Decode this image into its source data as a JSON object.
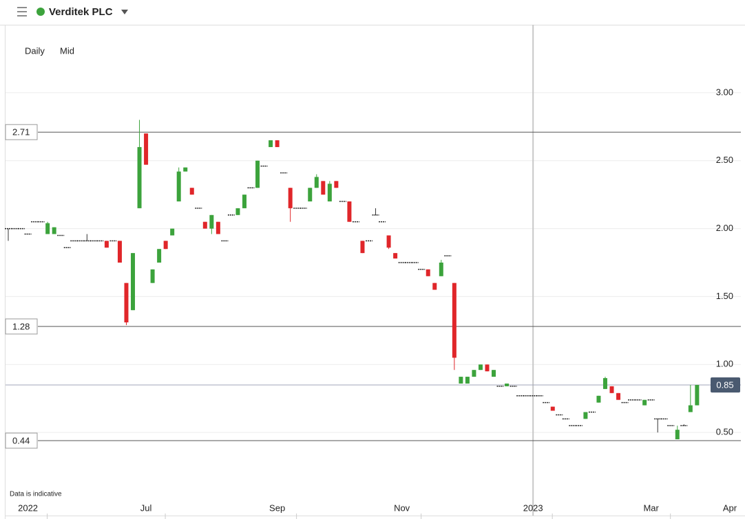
{
  "header": {
    "title": "Verditek PLC"
  },
  "controls": [
    "Daily",
    "Mid"
  ],
  "chart_data": {
    "type": "candlestick",
    "note": "Data is indicative",
    "categories": [
      null,
      null,
      null,
      "2022",
      null,
      null,
      null,
      null,
      null,
      null,
      null,
      null,
      null,
      null,
      null,
      null,
      null,
      null,
      null,
      null,
      null,
      "Jul",
      null,
      null,
      null,
      null,
      null,
      null,
      null,
      null,
      null,
      null,
      null,
      null,
      null,
      null,
      null,
      null,
      null,
      null,
      null,
      "Sep",
      null,
      null,
      null,
      null,
      null,
      null,
      null,
      null,
      null,
      null,
      null,
      null,
      null,
      null,
      null,
      null,
      null,
      null,
      "Nov",
      null,
      null,
      null,
      null,
      null,
      null,
      null,
      null,
      null,
      null,
      null,
      null,
      null,
      null,
      null,
      null,
      null,
      null,
      null,
      "2023",
      null,
      null,
      null,
      null,
      null,
      null,
      null,
      null,
      null,
      null,
      null,
      null,
      null,
      null,
      null,
      null,
      null,
      "Mar",
      null,
      null,
      null,
      null,
      null,
      null,
      null,
      null,
      null,
      null,
      null,
      "Apr"
    ],
    "open": [
      2.0,
      2.0,
      2.0,
      1.96,
      2.05,
      2.05,
      1.96,
      1.96,
      1.95,
      1.86,
      1.91,
      1.91,
      1.91,
      1.91,
      1.91,
      1.91,
      1.91,
      1.91,
      1.6,
      1.4,
      2.15,
      2.7,
      1.6,
      1.75,
      1.91,
      1.95,
      2.2,
      2.42,
      2.3,
      2.15,
      2.05,
      2.0,
      2.05,
      1.91,
      2.1,
      2.1,
      2.15,
      2.3,
      2.3,
      2.46,
      2.6,
      2.65,
      2.41,
      2.3,
      2.15,
      2.15,
      2.2,
      2.3,
      2.35,
      2.2,
      2.35,
      2.2,
      2.2,
      2.05,
      1.91,
      1.91,
      2.1,
      2.05,
      1.95,
      1.82,
      1.75,
      1.75,
      1.75,
      1.7,
      1.7,
      1.6,
      1.65,
      1.8,
      1.6,
      0.86,
      0.86,
      0.91,
      0.96,
      1.0,
      0.91,
      0.84,
      0.84,
      0.84,
      0.77,
      0.77,
      0.77,
      0.77,
      0.72,
      0.69,
      0.63,
      0.6,
      0.55,
      0.55,
      0.6,
      0.65,
      0.72,
      0.82,
      0.84,
      0.79,
      0.72,
      0.74,
      0.74,
      0.7,
      0.74,
      0.6,
      0.6,
      0.55,
      0.45,
      0.55,
      0.65,
      0.7,
      null,
      null,
      null,
      null,
      null
    ],
    "high": [
      2.0,
      2.0,
      2.0,
      1.96,
      2.05,
      2.05,
      2.05,
      2.01,
      1.95,
      1.86,
      1.91,
      1.91,
      1.96,
      1.91,
      1.91,
      1.91,
      1.91,
      1.91,
      1.6,
      1.82,
      2.8,
      2.7,
      1.7,
      1.85,
      1.91,
      2.0,
      2.45,
      2.45,
      2.3,
      2.15,
      2.05,
      2.1,
      2.05,
      1.91,
      2.1,
      2.15,
      2.25,
      2.3,
      2.5,
      2.46,
      2.65,
      2.65,
      2.41,
      2.3,
      2.15,
      2.15,
      2.3,
      2.4,
      2.35,
      2.35,
      2.35,
      2.2,
      2.2,
      2.05,
      1.91,
      1.91,
      2.15,
      2.05,
      1.95,
      1.82,
      1.75,
      1.75,
      1.75,
      1.7,
      1.7,
      1.6,
      1.77,
      1.8,
      1.6,
      0.91,
      0.91,
      0.96,
      1.0,
      1.0,
      0.96,
      0.84,
      0.86,
      0.84,
      0.77,
      0.77,
      0.77,
      0.77,
      0.72,
      0.69,
      0.63,
      0.6,
      0.55,
      0.55,
      0.65,
      0.65,
      0.77,
      0.91,
      0.84,
      0.79,
      0.72,
      0.74,
      0.74,
      0.74,
      0.74,
      0.6,
      0.6,
      0.55,
      0.55,
      0.56,
      0.85,
      0.85,
      null,
      null,
      null,
      null,
      null
    ],
    "low": [
      1.91,
      2.0,
      2.0,
      1.96,
      2.05,
      2.05,
      1.96,
      1.96,
      1.95,
      1.86,
      1.91,
      1.91,
      1.91,
      1.91,
      1.91,
      1.86,
      1.91,
      1.75,
      1.29,
      1.4,
      2.15,
      2.47,
      1.6,
      1.75,
      1.85,
      1.95,
      2.2,
      2.42,
      2.25,
      2.15,
      2.0,
      1.96,
      1.96,
      1.91,
      2.1,
      2.1,
      2.15,
      2.3,
      2.3,
      2.46,
      2.6,
      2.6,
      2.41,
      2.05,
      2.15,
      2.15,
      2.2,
      2.3,
      2.25,
      2.2,
      2.3,
      2.2,
      2.05,
      2.05,
      1.82,
      1.91,
      2.1,
      2.05,
      1.85,
      1.78,
      1.75,
      1.75,
      1.75,
      1.7,
      1.65,
      1.55,
      1.65,
      1.8,
      0.96,
      0.86,
      0.86,
      0.91,
      0.96,
      0.95,
      0.91,
      0.84,
      0.84,
      0.84,
      0.77,
      0.77,
      0.77,
      0.77,
      0.72,
      0.66,
      0.63,
      0.6,
      0.55,
      0.55,
      0.6,
      0.65,
      0.72,
      0.82,
      0.79,
      0.74,
      0.72,
      0.74,
      0.74,
      0.7,
      0.74,
      0.5,
      0.6,
      0.55,
      0.45,
      0.55,
      0.65,
      0.7,
      null,
      null,
      null,
      null,
      null
    ],
    "close": [
      2.0,
      2.0,
      2.0,
      1.96,
      2.05,
      2.05,
      2.04,
      2.01,
      1.95,
      1.86,
      1.91,
      1.91,
      1.91,
      1.91,
      1.91,
      1.86,
      1.91,
      1.75,
      1.31,
      1.82,
      2.6,
      2.47,
      1.7,
      1.85,
      1.85,
      2.0,
      2.42,
      2.45,
      2.25,
      2.15,
      2.0,
      2.1,
      1.96,
      1.91,
      2.1,
      2.15,
      2.25,
      2.3,
      2.5,
      2.46,
      2.65,
      2.6,
      2.41,
      2.15,
      2.15,
      2.15,
      2.3,
      2.38,
      2.25,
      2.33,
      2.3,
      2.2,
      2.05,
      2.05,
      1.82,
      1.91,
      2.1,
      2.05,
      1.86,
      1.78,
      1.75,
      1.75,
      1.75,
      1.7,
      1.65,
      1.55,
      1.75,
      1.8,
      1.05,
      0.91,
      0.91,
      0.96,
      1.0,
      0.95,
      0.96,
      0.84,
      0.86,
      0.84,
      0.77,
      0.77,
      0.77,
      0.77,
      0.72,
      0.66,
      0.63,
      0.6,
      0.55,
      0.55,
      0.65,
      0.65,
      0.77,
      0.9,
      0.79,
      0.74,
      0.72,
      0.74,
      0.74,
      0.74,
      0.74,
      0.6,
      0.6,
      0.55,
      0.52,
      0.55,
      0.7,
      0.85,
      null,
      null,
      null,
      null,
      null
    ],
    "up_color": "#3ca33c",
    "down_color": "#e0262a",
    "flat_color": "#222222",
    "ylim": [
      0,
      3.5
    ],
    "yticks": [
      {
        "value": 0.5,
        "label": "0.50"
      },
      {
        "value": 1,
        "label": "1.00"
      },
      {
        "value": 1.5,
        "label": "1.50"
      },
      {
        "value": 2,
        "label": "2.00"
      },
      {
        "value": 2.5,
        "label": "2.50"
      },
      {
        "value": 3,
        "label": "3.00"
      }
    ],
    "grid": true,
    "price_lines": [
      2.71,
      1.28,
      0.44
    ],
    "last_price": 0.85
  }
}
